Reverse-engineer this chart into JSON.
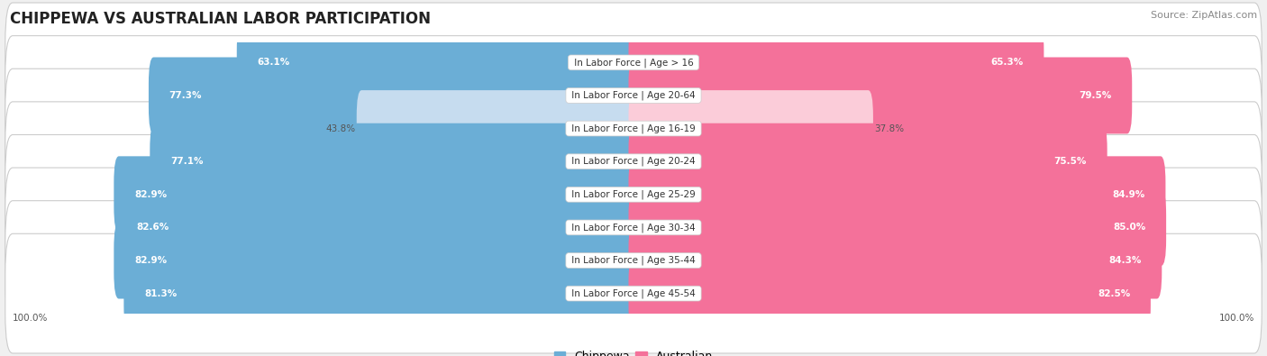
{
  "title": "CHIPPEWA VS AUSTRALIAN LABOR PARTICIPATION",
  "source": "Source: ZipAtlas.com",
  "categories": [
    "In Labor Force | Age > 16",
    "In Labor Force | Age 20-64",
    "In Labor Force | Age 16-19",
    "In Labor Force | Age 20-24",
    "In Labor Force | Age 25-29",
    "In Labor Force | Age 30-34",
    "In Labor Force | Age 35-44",
    "In Labor Force | Age 45-54"
  ],
  "chippewa_values": [
    63.1,
    77.3,
    43.8,
    77.1,
    82.9,
    82.6,
    82.9,
    81.3
  ],
  "australian_values": [
    65.3,
    79.5,
    37.8,
    75.5,
    84.9,
    85.0,
    84.3,
    82.5
  ],
  "chippewa_color": "#6BAED6",
  "australian_color": "#F4719A",
  "chippewa_light_color": "#C6DCEF",
  "australian_light_color": "#FBCCD9",
  "background_color": "#f0f0f0",
  "row_bg_even": "#e8e8e8",
  "row_bg_odd": "#e0e0e0",
  "bar_height": 0.72,
  "max_value": 100.0,
  "title_fontsize": 12,
  "label_fontsize": 7.5,
  "value_fontsize": 7.5,
  "legend_fontsize": 9,
  "source_fontsize": 8
}
